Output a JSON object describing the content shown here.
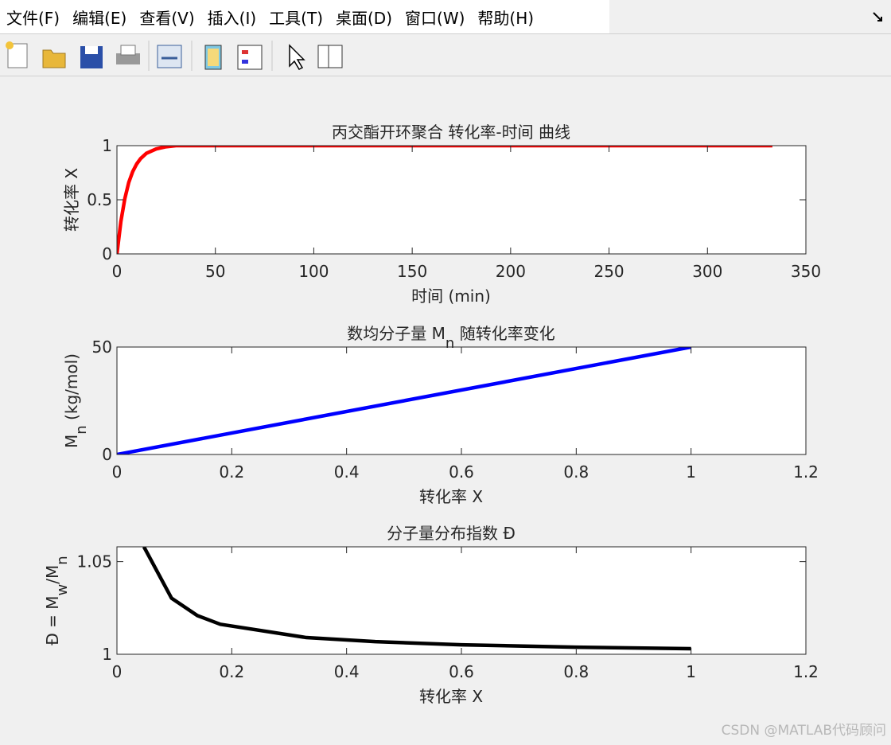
{
  "menu": [
    "文件(F)",
    "编辑(E)",
    "查看(V)",
    "插入(I)",
    "工具(T)",
    "桌面(D)",
    "窗口(W)",
    "帮助(H)"
  ],
  "chart_data": [
    {
      "type": "line",
      "title": "丙交酯开环聚合 转化率-时间 曲线",
      "xlabel": "时间 (min)",
      "ylabel": "转化率 X",
      "x": [
        0,
        2,
        4,
        6,
        8,
        10,
        12,
        15,
        20,
        25,
        30,
        40,
        50,
        100,
        150,
        200,
        250,
        300,
        333
      ],
      "values": [
        0,
        0.3,
        0.51,
        0.66,
        0.76,
        0.83,
        0.88,
        0.93,
        0.97,
        0.99,
        1,
        1,
        1,
        1,
        1,
        1,
        1,
        1,
        1
      ],
      "color": "#ff0000",
      "xlim": [
        0,
        350
      ],
      "xticks": [
        0,
        50,
        100,
        150,
        200,
        250,
        300,
        350
      ],
      "ylim": [
        0,
        1
      ],
      "yticks": [
        0,
        0.5,
        1
      ]
    },
    {
      "type": "line",
      "title": [
        {
          "text": "数均分子量 M"
        },
        {
          "text": "n",
          "sub": true
        },
        {
          "text": " 随转化率变化"
        }
      ],
      "xlabel": "转化率 X",
      "ylabel": [
        {
          "text": "M"
        },
        {
          "text": "n",
          "sub": true
        },
        {
          "text": " (kg/mol)"
        }
      ],
      "x": [
        0,
        1
      ],
      "values": [
        0,
        50
      ],
      "color": "#0000ff",
      "xlim": [
        0,
        1.2
      ],
      "xticks": [
        0,
        0.2,
        0.4,
        0.6,
        0.8,
        1,
        1.2
      ],
      "ylim": [
        0,
        50
      ],
      "yticks": [
        0,
        50
      ]
    },
    {
      "type": "line",
      "title": "分子量分布指数 Đ",
      "xlabel": "转化率 X",
      "ylabel": [
        {
          "text": "Đ = M"
        },
        {
          "text": "w",
          "sub": true
        },
        {
          "text": "/M"
        },
        {
          "text": "n",
          "sub": true
        }
      ],
      "x": [
        0.047,
        0.095,
        0.14,
        0.18,
        0.33,
        0.45,
        0.6,
        0.8,
        1
      ],
      "values": [
        1.058,
        1.0303,
        1.0209,
        1.0162,
        1.009,
        1.0068,
        1.0051,
        1.0038,
        1.003
      ],
      "color": "#000000",
      "xlim": [
        0,
        1.2
      ],
      "xticks": [
        0,
        0.2,
        0.4,
        0.6,
        0.8,
        1,
        1.2
      ],
      "ylim": [
        1,
        1.058
      ],
      "yticks": [
        1,
        1.05
      ]
    }
  ],
  "watermark": "CSDN @MATLAB代码顾问"
}
